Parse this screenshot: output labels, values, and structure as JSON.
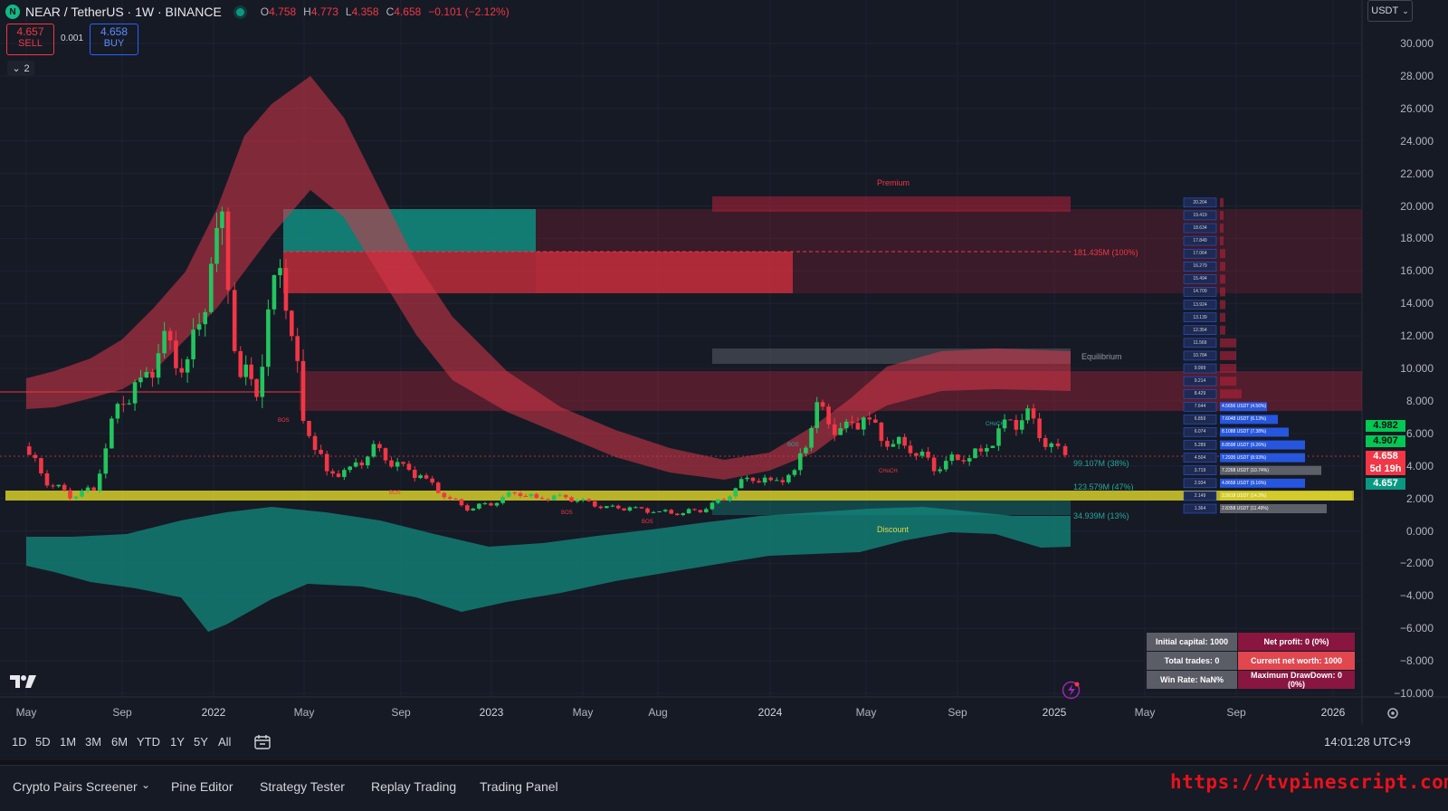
{
  "header": {
    "symbol": "NEAR / TetherUS · 1W · BINANCE",
    "ohlc": [
      {
        "k": "O",
        "v": "4.758"
      },
      {
        "k": "H",
        "v": "4.773"
      },
      {
        "k": "L",
        "v": "4.358"
      },
      {
        "k": "C",
        "v": "4.658"
      }
    ],
    "change": "−0.101 (−2.12%)"
  },
  "trade": {
    "sell_price": "4.657",
    "sell_label": "SELL",
    "spread": "0.001",
    "buy_price": "4.658",
    "buy_label": "BUY"
  },
  "indicators_count": "2",
  "currency": "USDT",
  "price_axis": [
    "30.000",
    "28.000",
    "26.000",
    "24.000",
    "22.000",
    "20.000",
    "18.000",
    "16.000",
    "14.000",
    "12.000",
    "10.000",
    "8.000",
    "6.000",
    "4.000",
    "2.000",
    "0.000",
    "−2.000",
    "−4.000",
    "−6.000",
    "−8.000",
    "−10.000"
  ],
  "price_tags": [
    {
      "text": "4.982",
      "bg": "#00c853",
      "fg": "#0b0e14"
    },
    {
      "text": "4.907",
      "bg": "#00c853",
      "fg": "#0b0e14"
    },
    {
      "text": "4.658",
      "bg": "#f23645",
      "fg": "#ffffff"
    },
    {
      "text": "5d 19h",
      "bg": "#f23645",
      "fg": "#ffffff"
    },
    {
      "text": "4.657",
      "bg": "#089981",
      "fg": "#ffffff"
    }
  ],
  "time_axis": [
    {
      "text": "May",
      "year": false
    },
    {
      "text": "Sep",
      "year": false
    },
    {
      "text": "2022",
      "year": true
    },
    {
      "text": "May",
      "year": false
    },
    {
      "text": "Sep",
      "year": false
    },
    {
      "text": "2023",
      "year": true
    },
    {
      "text": "May",
      "year": false
    },
    {
      "text": "Aug",
      "year": false
    },
    {
      "text": "2024",
      "year": true
    },
    {
      "text": "May",
      "year": false
    },
    {
      "text": "Sep",
      "year": false
    },
    {
      "text": "2025",
      "year": true
    },
    {
      "text": "May",
      "year": false
    },
    {
      "text": "Sep",
      "year": false
    },
    {
      "text": "2026",
      "year": true
    }
  ],
  "timeframes": [
    "1D",
    "5D",
    "1M",
    "3M",
    "6M",
    "YTD",
    "1Y",
    "5Y",
    "All"
  ],
  "clock": "14:01:28 UTC+9",
  "bottom_tabs": [
    "Crypto Pairs Screener",
    "Pine Editor",
    "Strategy Tester",
    "Replay Trading",
    "Trading Panel"
  ],
  "watermark_url": "https://tvpinescript.com/",
  "zones": {
    "premium": "Premium",
    "equilibrium": "Equilibrium",
    "discount": "Discount",
    "levels": [
      "181.435M (100%)",
      "99.107M (38%)",
      "123.579M (47%)",
      "34.939M (13%)"
    ],
    "markers": [
      "BOS",
      "BOS",
      "BOS",
      "BOS",
      "BOS",
      "CHoCH",
      "CHoCH"
    ]
  },
  "volume_profile": [
    {
      "price": "20.204",
      "label": ""
    },
    {
      "price": "19.419",
      "label": ""
    },
    {
      "price": "18.634",
      "label": ""
    },
    {
      "price": "17.849",
      "label": ""
    },
    {
      "price": "17.064",
      "label": ""
    },
    {
      "price": "16.279",
      "label": ""
    },
    {
      "price": "15.494",
      "label": ""
    },
    {
      "price": "14.709",
      "label": ""
    },
    {
      "price": "13.924",
      "label": ""
    },
    {
      "price": "13.139",
      "label": ""
    },
    {
      "price": "12.354",
      "label": ""
    },
    {
      "price": "11.569",
      "label": ""
    },
    {
      "price": "10.784",
      "label": ""
    },
    {
      "price": "9.999",
      "label": ""
    },
    {
      "price": "9.214",
      "label": ""
    },
    {
      "price": "8.429",
      "label": ""
    },
    {
      "price": "7.644",
      "label": "4.5656 USDT (4.56%)"
    },
    {
      "price": "6.859",
      "label": "7.6048 USDT (6.13%)"
    },
    {
      "price": "6.074",
      "label": "8.1088 USDT (7.38%)"
    },
    {
      "price": "5.289",
      "label": "8.8598 USDT (9.26%)"
    },
    {
      "price": "4.504",
      "label": "7.2935 USDT (8.93%)"
    },
    {
      "price": "3.719",
      "label": "7.2268 USDT (10.74%)"
    },
    {
      "price": "2.934",
      "label": "4.8658 USDT (9.16%)"
    },
    {
      "price": "2.149",
      "label": "3.5618 USDT (14.3%)"
    },
    {
      "price": "1.364",
      "label": "2.8358 USDT (11.49%)"
    }
  ],
  "strategy_stats": {
    "initial_capital": "Initial capital: 1000",
    "net_profit": "Net profit: 0 (0%)",
    "total_trades": "Total trades: 0",
    "net_worth": "Current net worth: 1000",
    "win_rate": "Win Rate: NaN%",
    "max_drawdown": "Maximum DrawDown: 0 (0%)"
  },
  "colors": {
    "background": "#161a25",
    "bull": "#22c55e",
    "bear": "#f23645",
    "teal": "#26a69a",
    "premium_zone": "#b5213a",
    "discount_zone": "#129c8c",
    "level_band": "#d6cf2a"
  },
  "chart_data": {
    "type": "candlestick",
    "title": "",
    "y_range": [
      -10,
      30
    ],
    "x_range": [
      "2021-04",
      "2026-02"
    ],
    "grid": true,
    "close_series": [
      [
        "2021-05-01",
        5.2
      ],
      [
        "2021-06-01",
        3.1
      ],
      [
        "2021-07-01",
        2.2
      ],
      [
        "2021-08-01",
        2.6
      ],
      [
        "2021-09-01",
        7.8
      ],
      [
        "2021-10-01",
        9.0
      ],
      [
        "2021-11-01",
        11.5
      ],
      [
        "2021-12-01",
        9.8
      ],
      [
        "2022-01-01",
        16.0
      ],
      [
        "2022-01-15",
        19.0
      ],
      [
        "2022-02-01",
        10.0
      ],
      [
        "2022-03-01",
        9.0
      ],
      [
        "2022-04-01",
        17.0
      ],
      [
        "2022-05-01",
        7.0
      ],
      [
        "2022-06-01",
        3.5
      ],
      [
        "2022-07-01",
        3.7
      ],
      [
        "2022-08-01",
        5.0
      ],
      [
        "2022-09-01",
        4.0
      ],
      [
        "2022-10-01",
        3.4
      ],
      [
        "2022-11-01",
        2.2
      ],
      [
        "2022-12-01",
        1.4
      ],
      [
        "2023-01-01",
        1.7
      ],
      [
        "2023-02-01",
        2.4
      ],
      [
        "2023-03-01",
        2.0
      ],
      [
        "2023-04-01",
        2.1
      ],
      [
        "2023-05-01",
        1.8
      ],
      [
        "2023-06-01",
        1.4
      ],
      [
        "2023-07-01",
        1.4
      ],
      [
        "2023-08-01",
        1.2
      ],
      [
        "2023-09-01",
        1.1
      ],
      [
        "2023-10-01",
        1.3
      ],
      [
        "2023-11-01",
        2.0
      ],
      [
        "2023-12-01",
        3.3
      ],
      [
        "2024-01-01",
        3.0
      ],
      [
        "2024-02-01",
        3.5
      ],
      [
        "2024-03-01",
        7.5
      ],
      [
        "2024-04-01",
        6.0
      ],
      [
        "2024-05-01",
        7.0
      ],
      [
        "2024-06-01",
        5.5
      ],
      [
        "2024-07-01",
        5.2
      ],
      [
        "2024-08-01",
        4.0
      ],
      [
        "2024-09-01",
        4.5
      ],
      [
        "2024-10-01",
        4.8
      ],
      [
        "2024-11-01",
        6.5
      ],
      [
        "2024-12-01",
        7.0
      ],
      [
        "2025-01-01",
        5.0
      ],
      [
        "2025-01-20",
        4.658
      ]
    ]
  }
}
